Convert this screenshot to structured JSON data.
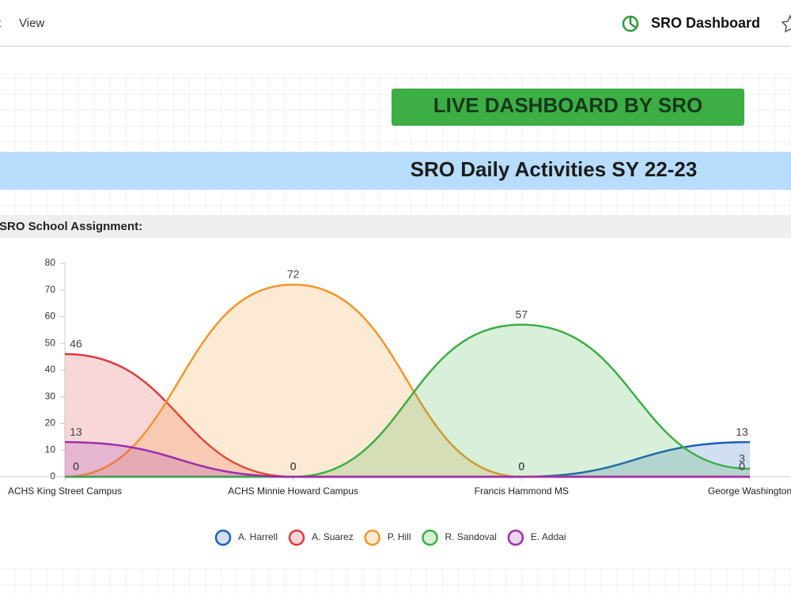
{
  "menu": [
    "t",
    "View"
  ],
  "header": {
    "title": "SRO Dashboard"
  },
  "button": "LIVE DASHBOARD BY SRO",
  "banner": "SRO Daily Activities SY 22-23",
  "section": "SRO School Assignment:",
  "chart_data": {
    "type": "area",
    "categories": [
      "ACHS King Street Campus",
      "ACHS Minnie Howard Campus",
      "Francis Hammond MS",
      "George Washington"
    ],
    "series": [
      {
        "name": "A. Harrell",
        "color": "#1f5fbf",
        "values": [
          0,
          0,
          0,
          13
        ]
      },
      {
        "name": "A. Suarez",
        "color": "#e0393e",
        "values": [
          46,
          0,
          0,
          0
        ]
      },
      {
        "name": "P. Hill",
        "color": "#f3962a",
        "values": [
          0,
          72,
          0,
          0
        ]
      },
      {
        "name": "R. Sandoval",
        "color": "#3cae45",
        "values": [
          0,
          0,
          57,
          3
        ]
      },
      {
        "name": "E. Addai",
        "color": "#9b2fae",
        "values": [
          13,
          0,
          0,
          0
        ]
      }
    ],
    "ylim": [
      0,
      80
    ],
    "yticks": [
      0,
      10,
      20,
      30,
      40,
      50,
      60,
      70,
      80
    ],
    "legend": "bottom"
  }
}
